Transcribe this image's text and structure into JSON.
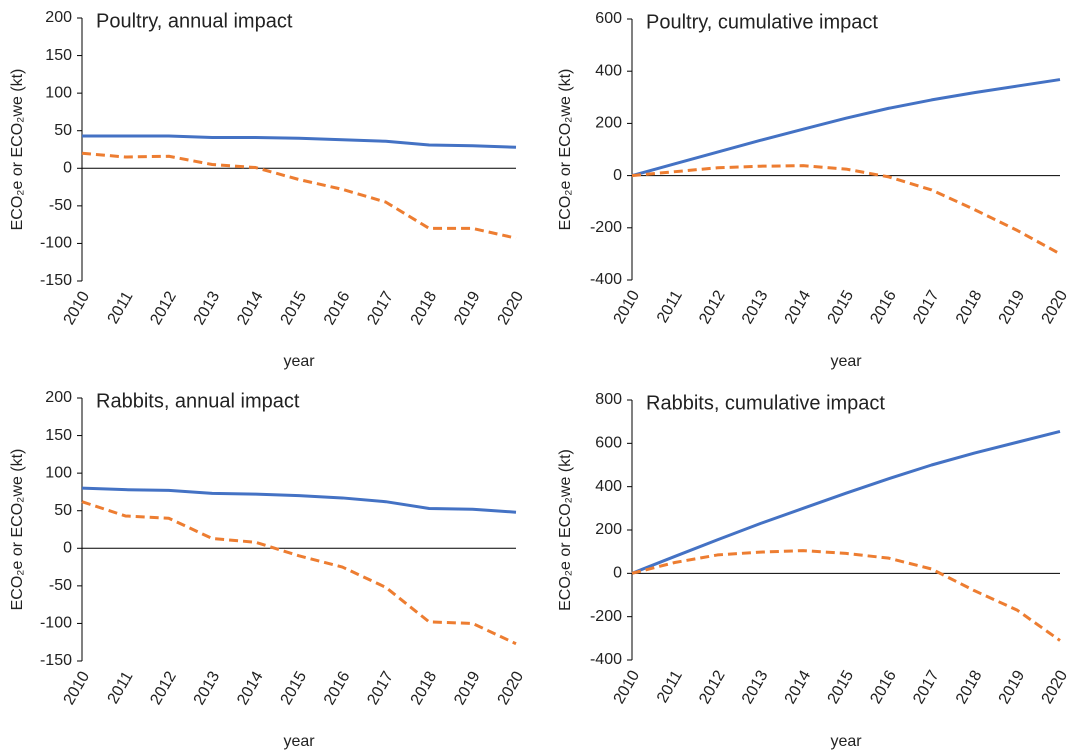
{
  "chart_data": [
    {
      "type": "line",
      "title": "Poultry, annual impact",
      "xlabel": "year",
      "ylabel": "ECO₂e or ECO₂we (kt)",
      "categories": [
        "2010",
        "2011",
        "2012",
        "2013",
        "2014",
        "2015",
        "2016",
        "2017",
        "2018",
        "2019",
        "2020"
      ],
      "series": [
        {
          "color": "#4472c4",
          "dashed": false,
          "values": [
            43,
            43,
            43,
            41,
            41,
            40,
            38,
            36,
            31,
            30,
            28
          ]
        },
        {
          "color": "#ed7d31",
          "dashed": true,
          "values": [
            20,
            15,
            16,
            5,
            1,
            -15,
            -28,
            -45,
            -80,
            -80,
            -93
          ]
        }
      ],
      "ylim": [
        -150,
        200
      ],
      "yticks": [
        -150,
        -100,
        -50,
        0,
        50,
        100,
        150,
        200
      ]
    },
    {
      "type": "line",
      "title": "Poultry, cumulative impact",
      "xlabel": "year",
      "ylabel": "ECO₂e or ECO₂we (kt)",
      "categories": [
        "2010",
        "2011",
        "2012",
        "2013",
        "2014",
        "2015",
        "2016",
        "2017",
        "2018",
        "2019",
        "2020"
      ],
      "series": [
        {
          "color": "#4472c4",
          "dashed": false,
          "values": [
            0,
            45,
            90,
            135,
            178,
            220,
            258,
            290,
            318,
            343,
            368
          ]
        },
        {
          "color": "#ed7d31",
          "dashed": true,
          "values": [
            0,
            15,
            30,
            36,
            38,
            25,
            -5,
            -55,
            -130,
            -210,
            -300
          ]
        }
      ],
      "ylim": [
        -400,
        600
      ],
      "yticks": [
        -400,
        -200,
        0,
        200,
        400,
        600
      ]
    },
    {
      "type": "line",
      "title": "Rabbits, annual impact",
      "xlabel": "year",
      "ylabel": "ECO₂e or ECO₂we (kt)",
      "categories": [
        "2010",
        "2011",
        "2012",
        "2013",
        "2014",
        "2015",
        "2016",
        "2017",
        "2018",
        "2019",
        "2020"
      ],
      "series": [
        {
          "color": "#4472c4",
          "dashed": false,
          "values": [
            80,
            78,
            77,
            73,
            72,
            70,
            67,
            62,
            53,
            52,
            48
          ]
        },
        {
          "color": "#ed7d31",
          "dashed": true,
          "values": [
            62,
            43,
            40,
            13,
            8,
            -10,
            -25,
            -52,
            -98,
            -100,
            -127
          ]
        }
      ],
      "ylim": [
        -150,
        200
      ],
      "yticks": [
        -150,
        -100,
        -50,
        0,
        50,
        100,
        150,
        200
      ]
    },
    {
      "type": "line",
      "title": "Rabbits, cumulative impact",
      "xlabel": "year",
      "ylabel": "ECO₂e or ECO₂we (kt)",
      "categories": [
        "2010",
        "2011",
        "2012",
        "2013",
        "2014",
        "2015",
        "2016",
        "2017",
        "2018",
        "2019",
        "2020"
      ],
      "series": [
        {
          "color": "#4472c4",
          "dashed": false,
          "values": [
            0,
            78,
            155,
            230,
            300,
            370,
            437,
            500,
            555,
            605,
            655
          ]
        },
        {
          "color": "#ed7d31",
          "dashed": true,
          "values": [
            0,
            50,
            85,
            98,
            105,
            92,
            70,
            20,
            -80,
            -170,
            -310
          ]
        }
      ],
      "ylim": [
        -400,
        800
      ],
      "yticks": [
        -400,
        -200,
        0,
        200,
        400,
        600,
        800
      ]
    }
  ]
}
